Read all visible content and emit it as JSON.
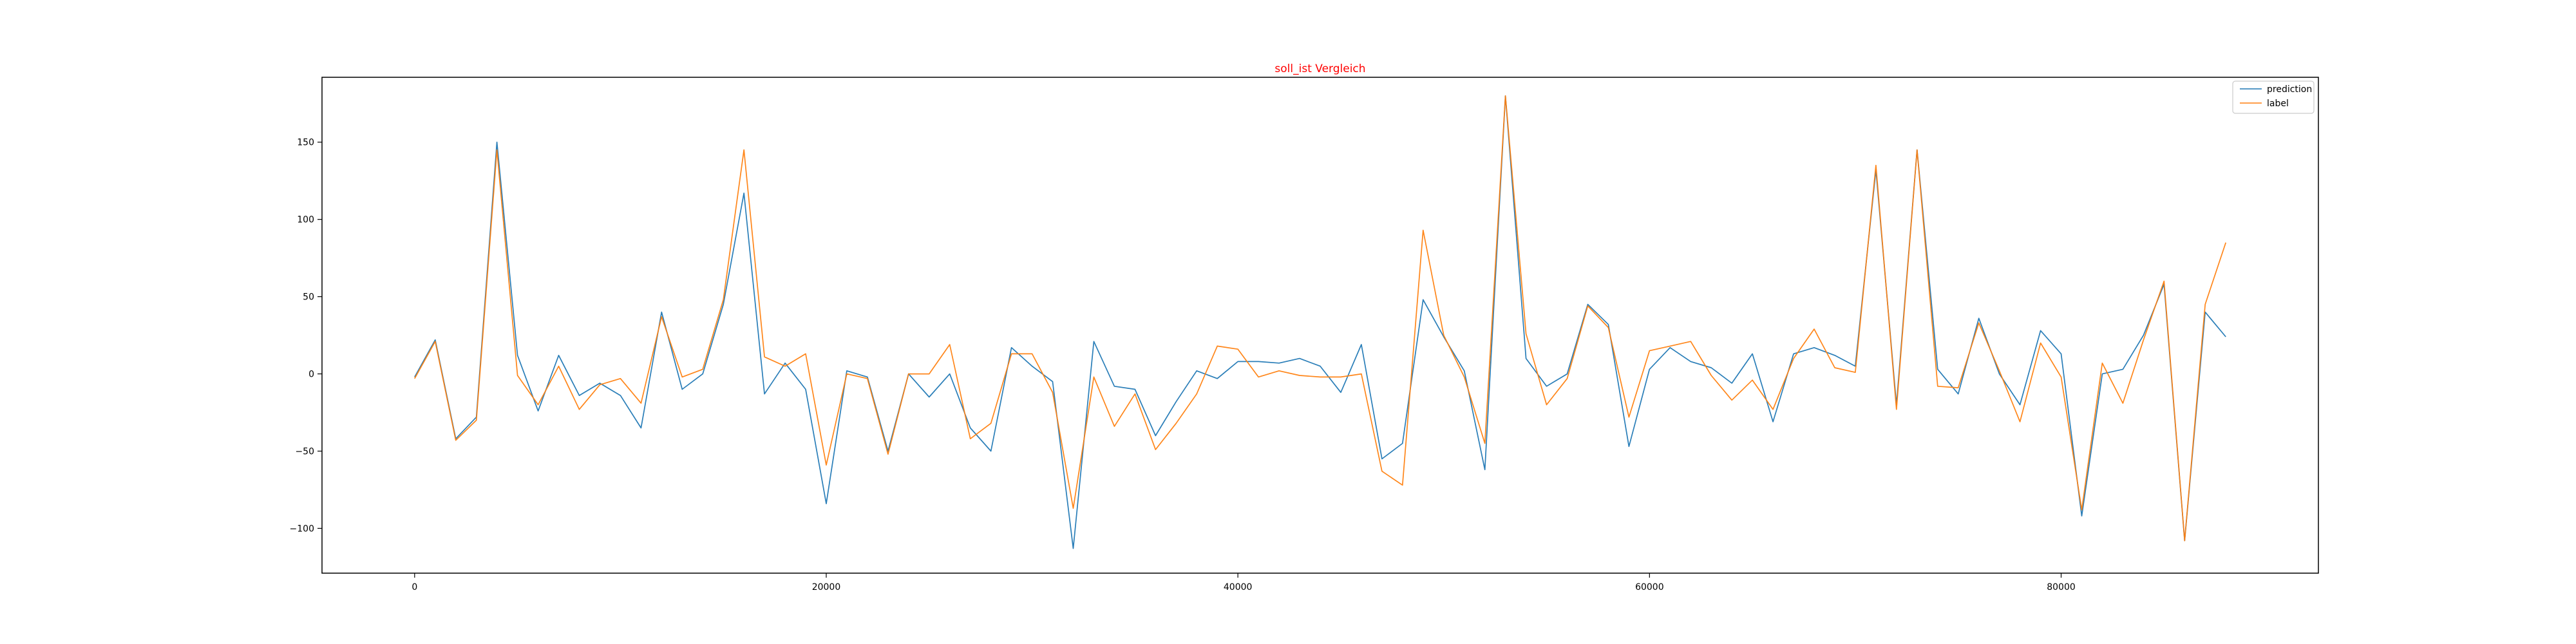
{
  "chart_data": {
    "type": "line",
    "title": "soll_ist Vergleich",
    "title_color": "#ff0000",
    "xlabel": "",
    "ylabel": "",
    "xlim": [
      -4500,
      92500
    ],
    "ylim": [
      -129,
      192
    ],
    "xticks": [
      0,
      20000,
      40000,
      60000,
      80000
    ],
    "xtick_labels": [
      "0",
      "20000",
      "40000",
      "60000",
      "80000"
    ],
    "yticks": [
      -100,
      -50,
      0,
      50,
      100,
      150
    ],
    "ytick_labels": [
      "−100",
      "−50",
      "0",
      "50",
      "100",
      "150"
    ],
    "grid": false,
    "legend_position": "top-right",
    "x": [
      0,
      1000,
      2000,
      3000,
      4000,
      5000,
      6000,
      7000,
      8000,
      9000,
      10000,
      11000,
      12000,
      13000,
      14000,
      15000,
      16000,
      17000,
      18000,
      19000,
      20000,
      21000,
      22000,
      23000,
      24000,
      25000,
      26000,
      27000,
      28000,
      29000,
      30000,
      31000,
      32000,
      33000,
      34000,
      35000,
      36000,
      37000,
      38000,
      39000,
      40000,
      41000,
      42000,
      43000,
      44000,
      45000,
      46000,
      47000,
      48000,
      49000,
      50000,
      51000,
      52000,
      53000,
      54000,
      55000,
      56000,
      57000,
      58000,
      59000,
      60000,
      61000,
      62000,
      63000,
      64000,
      65000,
      66000,
      67000,
      68000,
      69000,
      70000,
      71000,
      72000,
      73000,
      74000,
      75000,
      76000,
      77000,
      78000,
      79000,
      80000,
      81000,
      82000,
      83000,
      84000,
      85000,
      86000,
      87000,
      88000
    ],
    "series": [
      {
        "name": "prediction",
        "color": "#1f77b4",
        "values": [
          -2,
          22,
          -42,
          -28,
          150,
          12,
          -24,
          12,
          -14,
          -6,
          -14,
          -35,
          40,
          -10,
          0,
          45,
          117,
          -13,
          7,
          -10,
          -84,
          2,
          -2,
          -50,
          0,
          -15,
          0,
          -35,
          -50,
          17,
          5,
          -5,
          -113,
          21,
          -8,
          -10,
          -40,
          -18,
          2,
          -3,
          8,
          8,
          7,
          10,
          5,
          -12,
          19,
          -55,
          -45,
          48,
          24,
          2,
          -62,
          180,
          10,
          -8,
          0,
          45,
          32,
          -47,
          3,
          17,
          8,
          4,
          -6,
          13,
          -31,
          13,
          17,
          12,
          5,
          132,
          -20,
          145,
          3,
          -13,
          36,
          0,
          -20,
          28,
          13,
          -92,
          0,
          3,
          25,
          58,
          -108,
          40,
          24
        ]
      },
      {
        "name": "label",
        "color": "#ff7f0e",
        "values": [
          -3,
          21,
          -43,
          -30,
          145,
          -1,
          -20,
          5,
          -23,
          -7,
          -3,
          -19,
          37,
          -2,
          3,
          48,
          145,
          11,
          5,
          13,
          -59,
          0,
          -3,
          -52,
          0,
          0,
          19,
          -42,
          -32,
          13,
          13,
          -12,
          -87,
          -2,
          -34,
          -13,
          -49,
          -32,
          -13,
          18,
          16,
          -2,
          2,
          -1,
          -2,
          -2,
          0,
          -63,
          -72,
          93,
          25,
          -2,
          -45,
          180,
          26,
          -20,
          -3,
          44,
          30,
          -28,
          15,
          18,
          21,
          -1,
          -17,
          -4,
          -23,
          10,
          29,
          4,
          1,
          135,
          -23,
          145,
          -8,
          -9,
          33,
          2,
          -31,
          20,
          -2,
          -88,
          7,
          -19,
          22,
          60,
          -108,
          45,
          85
        ]
      }
    ]
  }
}
